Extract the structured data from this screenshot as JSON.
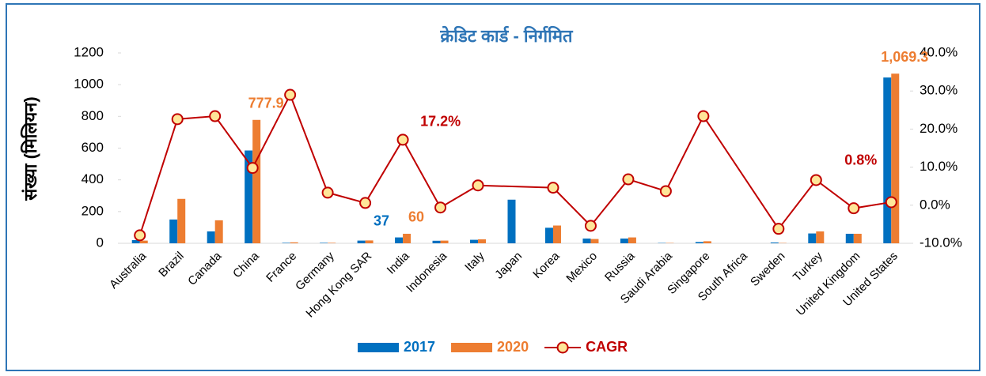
{
  "chart_data": {
    "type": "bar_line",
    "title": "क्रेडिट कार्ड - निर्गमित",
    "y_label": "संख्या (मिलियन)",
    "categories": [
      "Australia",
      "Brazil",
      "Canada",
      "China",
      "France",
      "Germany",
      "Hong Kong SAR",
      "India",
      "Indonesia",
      "Italy",
      "Japan",
      "Korea",
      "Mexico",
      "Russia",
      "Saudi Arabia",
      "Singapore",
      "South Africa",
      "Sweden",
      "Turkey",
      "United Kingdom",
      "United States"
    ],
    "series": [
      {
        "name": "2017",
        "type": "bar",
        "color": "#0070c0",
        "values": [
          20,
          150,
          75,
          585,
          3,
          3,
          17,
          37,
          16,
          22,
          275,
          98,
          30,
          30,
          2,
          8,
          null,
          5,
          62,
          60,
          1045
        ],
        "value_labels": [
          null,
          null,
          null,
          null,
          null,
          null,
          null,
          "37",
          null,
          null,
          null,
          null,
          null,
          null,
          null,
          null,
          null,
          null,
          null,
          null,
          null
        ]
      },
      {
        "name": "2020",
        "type": "bar",
        "color": "#ed7d31",
        "values": [
          17,
          280,
          145,
          777.9,
          6,
          3,
          18,
          60,
          17,
          25,
          null,
          112,
          27,
          37,
          2,
          13,
          null,
          2,
          75,
          60,
          1069.3
        ],
        "value_labels": [
          null,
          null,
          null,
          "777.9",
          null,
          null,
          null,
          "60",
          null,
          null,
          null,
          null,
          null,
          null,
          null,
          null,
          null,
          null,
          null,
          null,
          "1,069.3"
        ]
      },
      {
        "name": "CAGR",
        "type": "line",
        "axis": "y2",
        "color": "#c00000",
        "marker_fill": "#ffe699",
        "values": [
          -7.9,
          22.6,
          23.4,
          9.8,
          29.0,
          3.3,
          0.6,
          17.2,
          -0.6,
          5.2,
          null,
          4.6,
          -5.4,
          6.8,
          3.7,
          23.4,
          null,
          -6.2,
          6.6,
          -0.8,
          0.8
        ],
        "value_labels": [
          null,
          null,
          null,
          null,
          null,
          null,
          null,
          "17.2%",
          null,
          null,
          null,
          null,
          null,
          null,
          null,
          null,
          null,
          null,
          null,
          null,
          "0.8%"
        ]
      }
    ],
    "ylim": [
      0,
      1200
    ],
    "yticks": [
      0,
      200,
      400,
      600,
      800,
      1000,
      1200
    ],
    "y2lim": [
      -10,
      40
    ],
    "y2ticks": [
      {
        "value": -10,
        "label": "-10.0%"
      },
      {
        "value": 0,
        "label": "0.0%"
      },
      {
        "value": 10,
        "label": "10.0%"
      },
      {
        "value": 20,
        "label": "20.0%"
      },
      {
        "value": 30,
        "label": "30.0%"
      },
      {
        "value": 40,
        "label": "40.0%"
      }
    ],
    "span_gaps": true,
    "legend": "bottom"
  }
}
